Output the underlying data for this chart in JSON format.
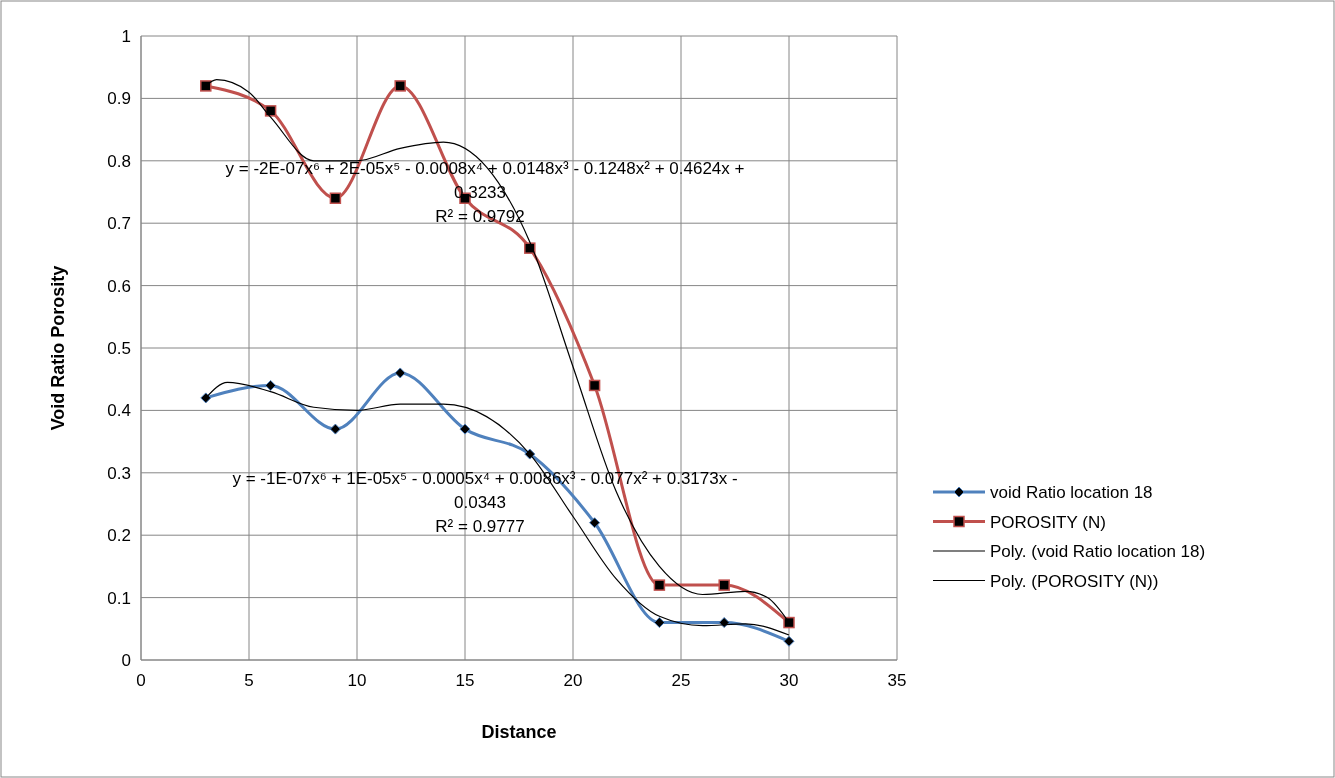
{
  "chart_data": {
    "type": "line",
    "xlabel": "Distance",
    "ylabel": "Void Ratio Porosity",
    "xlim": [
      0,
      35
    ],
    "xticks": [
      0,
      5,
      10,
      15,
      20,
      25,
      30,
      35
    ],
    "ylim": [
      0,
      1
    ],
    "yticks": [
      0,
      0.1,
      0.2,
      0.3,
      0.4,
      0.5,
      0.6,
      0.7,
      0.8,
      0.9,
      1
    ],
    "grid": true,
    "legend": "right",
    "line_style": "solid",
    "x": [
      3,
      6,
      9,
      12,
      15,
      18,
      21,
      24,
      27,
      30
    ],
    "series": [
      {
        "name": "void Ratio location 18",
        "color": "#4f81bd",
        "marker": "diamond",
        "values": [
          0.42,
          0.44,
          0.37,
          0.46,
          0.37,
          0.33,
          0.22,
          0.06,
          0.06,
          0.03
        ]
      },
      {
        "name": "POROSITY (N)",
        "color": "#c0504d",
        "marker": "square",
        "values": [
          0.92,
          0.88,
          0.74,
          0.92,
          0.74,
          0.66,
          0.44,
          0.12,
          0.12,
          0.06
        ]
      },
      {
        "name": "Poly. (void Ratio location 18)",
        "color": "#000000",
        "marker": "none",
        "x": [
          3,
          4,
          6,
          8,
          10,
          12,
          14,
          16,
          18,
          20,
          22,
          24,
          26,
          28,
          30
        ],
        "values": [
          0.42,
          0.445,
          0.43,
          0.405,
          0.4,
          0.41,
          0.41,
          0.39,
          0.33,
          0.23,
          0.13,
          0.07,
          0.055,
          0.058,
          0.04
        ]
      },
      {
        "name": "Poly. (POROSITY (N))",
        "color": "#000000",
        "marker": "none",
        "x": [
          3,
          3.5,
          5,
          6,
          8,
          10,
          12,
          14,
          16,
          18,
          20,
          22,
          24,
          26,
          28,
          29,
          30
        ],
        "values": [
          0.92,
          0.93,
          0.91,
          0.87,
          0.8,
          0.8,
          0.82,
          0.83,
          0.79,
          0.67,
          0.47,
          0.27,
          0.15,
          0.105,
          0.11,
          0.1,
          0.06
        ]
      }
    ],
    "annotations": [
      "y = -2E-07x⁶ + 2E-05x⁵ - 0.0008x⁴ + 0.0148x³ - 0.1248x² + 0.4624x + 0.3233",
      "R² = 0.9792",
      "y = -1E-07x⁶ + 1E-05x⁵ - 0.0005x⁴ + 0.0086x³ - 0.077x² + 0.3173x - 0.0343",
      "R² = 0.9777"
    ]
  }
}
